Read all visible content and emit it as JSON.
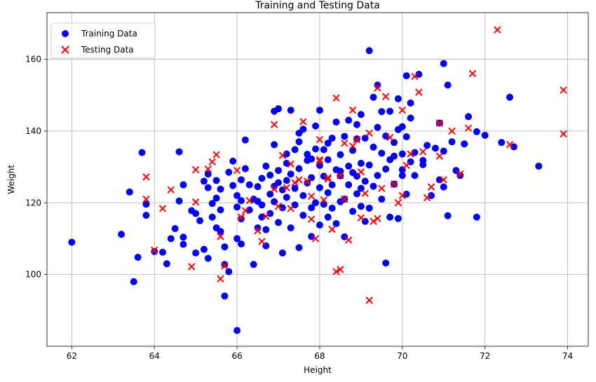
{
  "chart_data": {
    "type": "scatter",
    "title": "Training and Testing Data",
    "xlabel": "Height",
    "ylabel": "Weight",
    "xlim": [
      61.4,
      74.5
    ],
    "ylim": [
      80,
      173
    ],
    "xticks": [
      62,
      64,
      66,
      68,
      70,
      72,
      74
    ],
    "yticks": [
      100,
      120,
      140,
      160
    ],
    "grid": true,
    "legend_position": "upper-left",
    "series": [
      {
        "name": "Training Data",
        "marker": "circle",
        "color": "#0000ff",
        "points": [
          [
            62.0,
            109.0
          ],
          [
            63.2,
            111.2
          ],
          [
            63.4,
            123.0
          ],
          [
            63.5,
            98.0
          ],
          [
            63.6,
            104.8
          ],
          [
            63.7,
            134.0
          ],
          [
            63.8,
            119.6
          ],
          [
            63.8,
            116.5
          ],
          [
            64.0,
            106.4
          ],
          [
            64.2,
            106.2
          ],
          [
            64.3,
            103.0
          ],
          [
            64.4,
            110.0
          ],
          [
            64.5,
            112.8
          ],
          [
            64.6,
            134.2
          ],
          [
            64.7,
            125.0
          ],
          [
            64.6,
            120.5
          ],
          [
            64.7,
            110.4
          ],
          [
            64.7,
            108.4
          ],
          [
            64.9,
            117.8
          ],
          [
            65.0,
            106.0
          ],
          [
            65.0,
            117.0
          ],
          [
            65.1,
            115.0
          ],
          [
            65.2,
            126.0
          ],
          [
            65.2,
            107.0
          ],
          [
            65.3,
            104.5
          ],
          [
            65.3,
            128.0
          ],
          [
            65.3,
            124.2
          ],
          [
            65.4,
            119.8
          ],
          [
            65.4,
            116.0
          ],
          [
            65.5,
            113.0
          ],
          [
            65.5,
            126.2
          ],
          [
            65.6,
            118.0
          ],
          [
            65.5,
            121.3
          ],
          [
            65.6,
            112.0
          ],
          [
            65.7,
            102.8
          ],
          [
            65.7,
            107.7
          ],
          [
            65.6,
            123.8
          ],
          [
            65.8,
            100.8
          ],
          [
            65.8,
            128.5
          ],
          [
            65.9,
            124.8
          ],
          [
            65.9,
            131.6
          ],
          [
            66.0,
            122.0
          ],
          [
            66.0,
            118.8
          ],
          [
            66.0,
            110.0
          ],
          [
            66.1,
            108.5
          ],
          [
            66.1,
            115.5
          ],
          [
            66.1,
            120.6
          ],
          [
            66.1,
            126.4
          ],
          [
            66.2,
            129.5
          ],
          [
            66.2,
            137.5
          ],
          [
            66.3,
            125.0
          ],
          [
            66.3,
            118.0
          ],
          [
            66.4,
            121.0
          ],
          [
            66.4,
            102.8
          ],
          [
            66.5,
            113.0
          ],
          [
            66.5,
            124.5
          ],
          [
            66.6,
            116.0
          ],
          [
            66.6,
            126.8
          ],
          [
            66.6,
            119.4
          ],
          [
            66.7,
            112.5
          ],
          [
            66.7,
            130.2
          ],
          [
            66.7,
            108.0
          ],
          [
            66.8,
            122.4
          ],
          [
            66.8,
            127.7
          ],
          [
            66.8,
            117.0
          ],
          [
            66.9,
            120.3
          ],
          [
            66.9,
            124.6
          ],
          [
            66.9,
            145.5
          ],
          [
            67.0,
            146.2
          ],
          [
            67.0,
            129.0
          ],
          [
            67.0,
            114.5
          ],
          [
            67.1,
            123.6
          ],
          [
            67.1,
            118.6
          ],
          [
            67.1,
            106.0
          ],
          [
            67.2,
            131.0
          ],
          [
            67.2,
            121.5
          ],
          [
            67.2,
            126.2
          ],
          [
            67.3,
            145.8
          ],
          [
            67.3,
            128.0
          ],
          [
            67.3,
            113.0
          ],
          [
            67.4,
            119.4
          ],
          [
            67.4,
            134.8
          ],
          [
            67.4,
            124.0
          ],
          [
            67.5,
            107.5
          ],
          [
            67.5,
            137.0
          ],
          [
            67.5,
            129.5
          ],
          [
            67.6,
            116.5
          ],
          [
            67.6,
            140.5
          ],
          [
            67.6,
            122.0
          ],
          [
            67.7,
            125.5
          ],
          [
            67.7,
            131.8
          ],
          [
            67.7,
            133.5
          ],
          [
            67.8,
            118.6
          ],
          [
            67.8,
            110.6
          ],
          [
            67.8,
            127.0
          ],
          [
            67.9,
            120.0
          ],
          [
            67.9,
            135.0
          ],
          [
            67.9,
            141.4
          ],
          [
            68.0,
            113.8
          ],
          [
            68.0,
            124.2
          ],
          [
            68.0,
            130.4
          ],
          [
            68.0,
            145.8
          ],
          [
            68.1,
            119.6
          ],
          [
            68.1,
            127.4
          ],
          [
            68.1,
            134.8
          ],
          [
            68.2,
            116.0
          ],
          [
            68.2,
            122.8
          ],
          [
            68.2,
            132.0
          ],
          [
            68.3,
            125.0
          ],
          [
            68.3,
            138.0
          ],
          [
            68.3,
            118.5
          ],
          [
            68.4,
            129.2
          ],
          [
            68.4,
            142.5
          ],
          [
            68.4,
            114.2
          ],
          [
            68.5,
            127.5
          ],
          [
            68.5,
            133.4
          ],
          [
            68.5,
            120.3
          ],
          [
            68.6,
            121.0
          ],
          [
            68.6,
            138.5
          ],
          [
            68.6,
            110.5
          ],
          [
            68.7,
            130.2
          ],
          [
            68.7,
            125.0
          ],
          [
            68.7,
            143.0
          ],
          [
            68.8,
            117.6
          ],
          [
            68.8,
            134.6
          ],
          [
            68.8,
            128.4
          ],
          [
            68.9,
            122.5
          ],
          [
            68.9,
            137.8
          ],
          [
            68.9,
            141.8
          ],
          [
            69.0,
            119.0
          ],
          [
            69.0,
            131.0
          ],
          [
            69.0,
            144.6
          ],
          [
            69.1,
            126.0
          ],
          [
            69.1,
            114.8
          ],
          [
            69.1,
            138.0
          ],
          [
            69.2,
            162.4
          ],
          [
            69.2,
            130.5
          ],
          [
            69.2,
            118.5
          ],
          [
            69.3,
            135.5
          ],
          [
            69.3,
            124.6
          ],
          [
            69.3,
            149.4
          ],
          [
            69.4,
            127.6
          ],
          [
            69.4,
            141.0
          ],
          [
            69.4,
            152.8
          ],
          [
            69.5,
            121.0
          ],
          [
            69.5,
            133.8
          ],
          [
            69.5,
            145.4
          ],
          [
            69.6,
            103.2
          ],
          [
            69.6,
            129.4
          ],
          [
            69.6,
            138.6
          ],
          [
            69.7,
            116.0
          ],
          [
            69.7,
            132.0
          ],
          [
            69.7,
            145.5
          ],
          [
            69.8,
            125.2
          ],
          [
            69.8,
            136.8
          ],
          [
            69.9,
            115.6
          ],
          [
            69.9,
            140.4
          ],
          [
            69.9,
            149.0
          ],
          [
            70.0,
            127.6
          ],
          [
            70.0,
            133.6
          ],
          [
            70.0,
            141.2
          ],
          [
            70.1,
            155.4
          ],
          [
            70.1,
            122.4
          ],
          [
            70.1,
            138.4
          ],
          [
            70.2,
            131.4
          ],
          [
            70.2,
            143.6
          ],
          [
            70.2,
            147.8
          ],
          [
            70.3,
            127.6
          ],
          [
            70.3,
            134.0
          ],
          [
            70.4,
            155.8
          ],
          [
            70.5,
            131.8
          ],
          [
            70.6,
            136.0
          ],
          [
            70.7,
            122.0
          ],
          [
            70.8,
            135.2
          ],
          [
            70.9,
            142.2
          ],
          [
            70.9,
            126.4
          ],
          [
            71.0,
            158.8
          ],
          [
            71.0,
            124.4
          ],
          [
            71.0,
            134.4
          ],
          [
            71.1,
            152.8
          ],
          [
            71.1,
            116.4
          ],
          [
            71.2,
            137.0
          ],
          [
            71.3,
            129.0
          ],
          [
            71.4,
            127.6
          ],
          [
            71.5,
            136.4
          ],
          [
            71.6,
            144.0
          ],
          [
            71.8,
            139.8
          ],
          [
            71.8,
            116.0
          ],
          [
            72.0,
            138.8
          ],
          [
            72.4,
            136.8
          ],
          [
            72.6,
            149.4
          ],
          [
            72.7,
            135.6
          ],
          [
            73.3,
            130.2
          ],
          [
            66.0,
            84.4
          ],
          [
            65.7,
            94.0
          ],
          [
            67.0,
            125.6
          ],
          [
            67.8,
            132.2
          ],
          [
            68.5,
            128.8
          ],
          [
            69.0,
            124.0
          ],
          [
            66.5,
            120.4
          ],
          [
            67.2,
            133.6
          ],
          [
            68.9,
            127.4
          ],
          [
            70.5,
            130.6
          ],
          [
            66.9,
            136.2
          ],
          [
            67.5,
            139.4
          ],
          [
            68.2,
            136.6
          ],
          [
            69.8,
            133.0
          ],
          [
            70.0,
            129.2
          ]
        ]
      },
      {
        "name": "Testing Data",
        "marker": "x",
        "color": "#ff0000",
        "points": [
          [
            63.8,
            127.2
          ],
          [
            63.8,
            121.0
          ],
          [
            64.0,
            106.8
          ],
          [
            64.2,
            118.4
          ],
          [
            64.4,
            123.6
          ],
          [
            64.9,
            102.2
          ],
          [
            65.0,
            129.2
          ],
          [
            65.3,
            129.4
          ],
          [
            65.4,
            131.4
          ],
          [
            65.5,
            133.4
          ],
          [
            65.6,
            110.6
          ],
          [
            65.6,
            98.8
          ],
          [
            65.7,
            102.4
          ],
          [
            66.0,
            129.0
          ],
          [
            66.1,
            116.0
          ],
          [
            66.2,
            117.8
          ],
          [
            66.5,
            112.2
          ],
          [
            66.6,
            109.2
          ],
          [
            66.7,
            116.2
          ],
          [
            66.9,
            123.8
          ],
          [
            66.9,
            141.8
          ],
          [
            67.1,
            133.2
          ],
          [
            67.2,
            124.2
          ],
          [
            67.3,
            118.4
          ],
          [
            67.3,
            130.8
          ],
          [
            67.5,
            126.4
          ],
          [
            67.6,
            142.6
          ],
          [
            67.7,
            126.0
          ],
          [
            67.8,
            115.4
          ],
          [
            67.9,
            110.0
          ],
          [
            68.0,
            137.6
          ],
          [
            68.0,
            131.6
          ],
          [
            68.1,
            120.8
          ],
          [
            68.2,
            126.6
          ],
          [
            68.3,
            112.6
          ],
          [
            68.4,
            100.8
          ],
          [
            68.5,
            101.4
          ],
          [
            68.5,
            127.6
          ],
          [
            68.6,
            121.0
          ],
          [
            68.7,
            109.6
          ],
          [
            68.8,
            135.8
          ],
          [
            68.9,
            137.6
          ],
          [
            69.0,
            128.6
          ],
          [
            69.1,
            122.6
          ],
          [
            69.2,
            139.4
          ],
          [
            69.3,
            114.8
          ],
          [
            69.4,
            115.6
          ],
          [
            69.5,
            124.0
          ],
          [
            69.6,
            149.6
          ],
          [
            69.7,
            138.2
          ],
          [
            69.8,
            125.2
          ],
          [
            69.9,
            120.0
          ],
          [
            70.0,
            145.8
          ],
          [
            70.1,
            130.4
          ],
          [
            70.2,
            133.6
          ],
          [
            70.3,
            155.2
          ],
          [
            70.4,
            150.8
          ],
          [
            70.5,
            134.2
          ],
          [
            70.6,
            121.4
          ],
          [
            70.7,
            124.4
          ],
          [
            70.9,
            142.2
          ],
          [
            70.9,
            133.0
          ],
          [
            71.0,
            126.4
          ],
          [
            71.2,
            140.0
          ],
          [
            71.4,
            128.0
          ],
          [
            71.6,
            140.8
          ],
          [
            71.7,
            156.0
          ],
          [
            72.3,
            168.2
          ],
          [
            72.6,
            136.2
          ],
          [
            73.9,
            139.2
          ],
          [
            73.9,
            151.4
          ],
          [
            69.2,
            92.8
          ],
          [
            69.0,
            115.8
          ],
          [
            68.8,
            145.8
          ],
          [
            68.0,
            132.0
          ],
          [
            67.0,
            119.0
          ],
          [
            66.3,
            120.6
          ],
          [
            65.0,
            120.2
          ],
          [
            68.4,
            149.2
          ],
          [
            69.4,
            152.0
          ],
          [
            67.8,
            121.8
          ],
          [
            68.6,
            136.6
          ],
          [
            70.0,
            122.0
          ],
          [
            67.4,
            125.6
          ],
          [
            68.2,
            127.0
          ]
        ]
      }
    ]
  }
}
